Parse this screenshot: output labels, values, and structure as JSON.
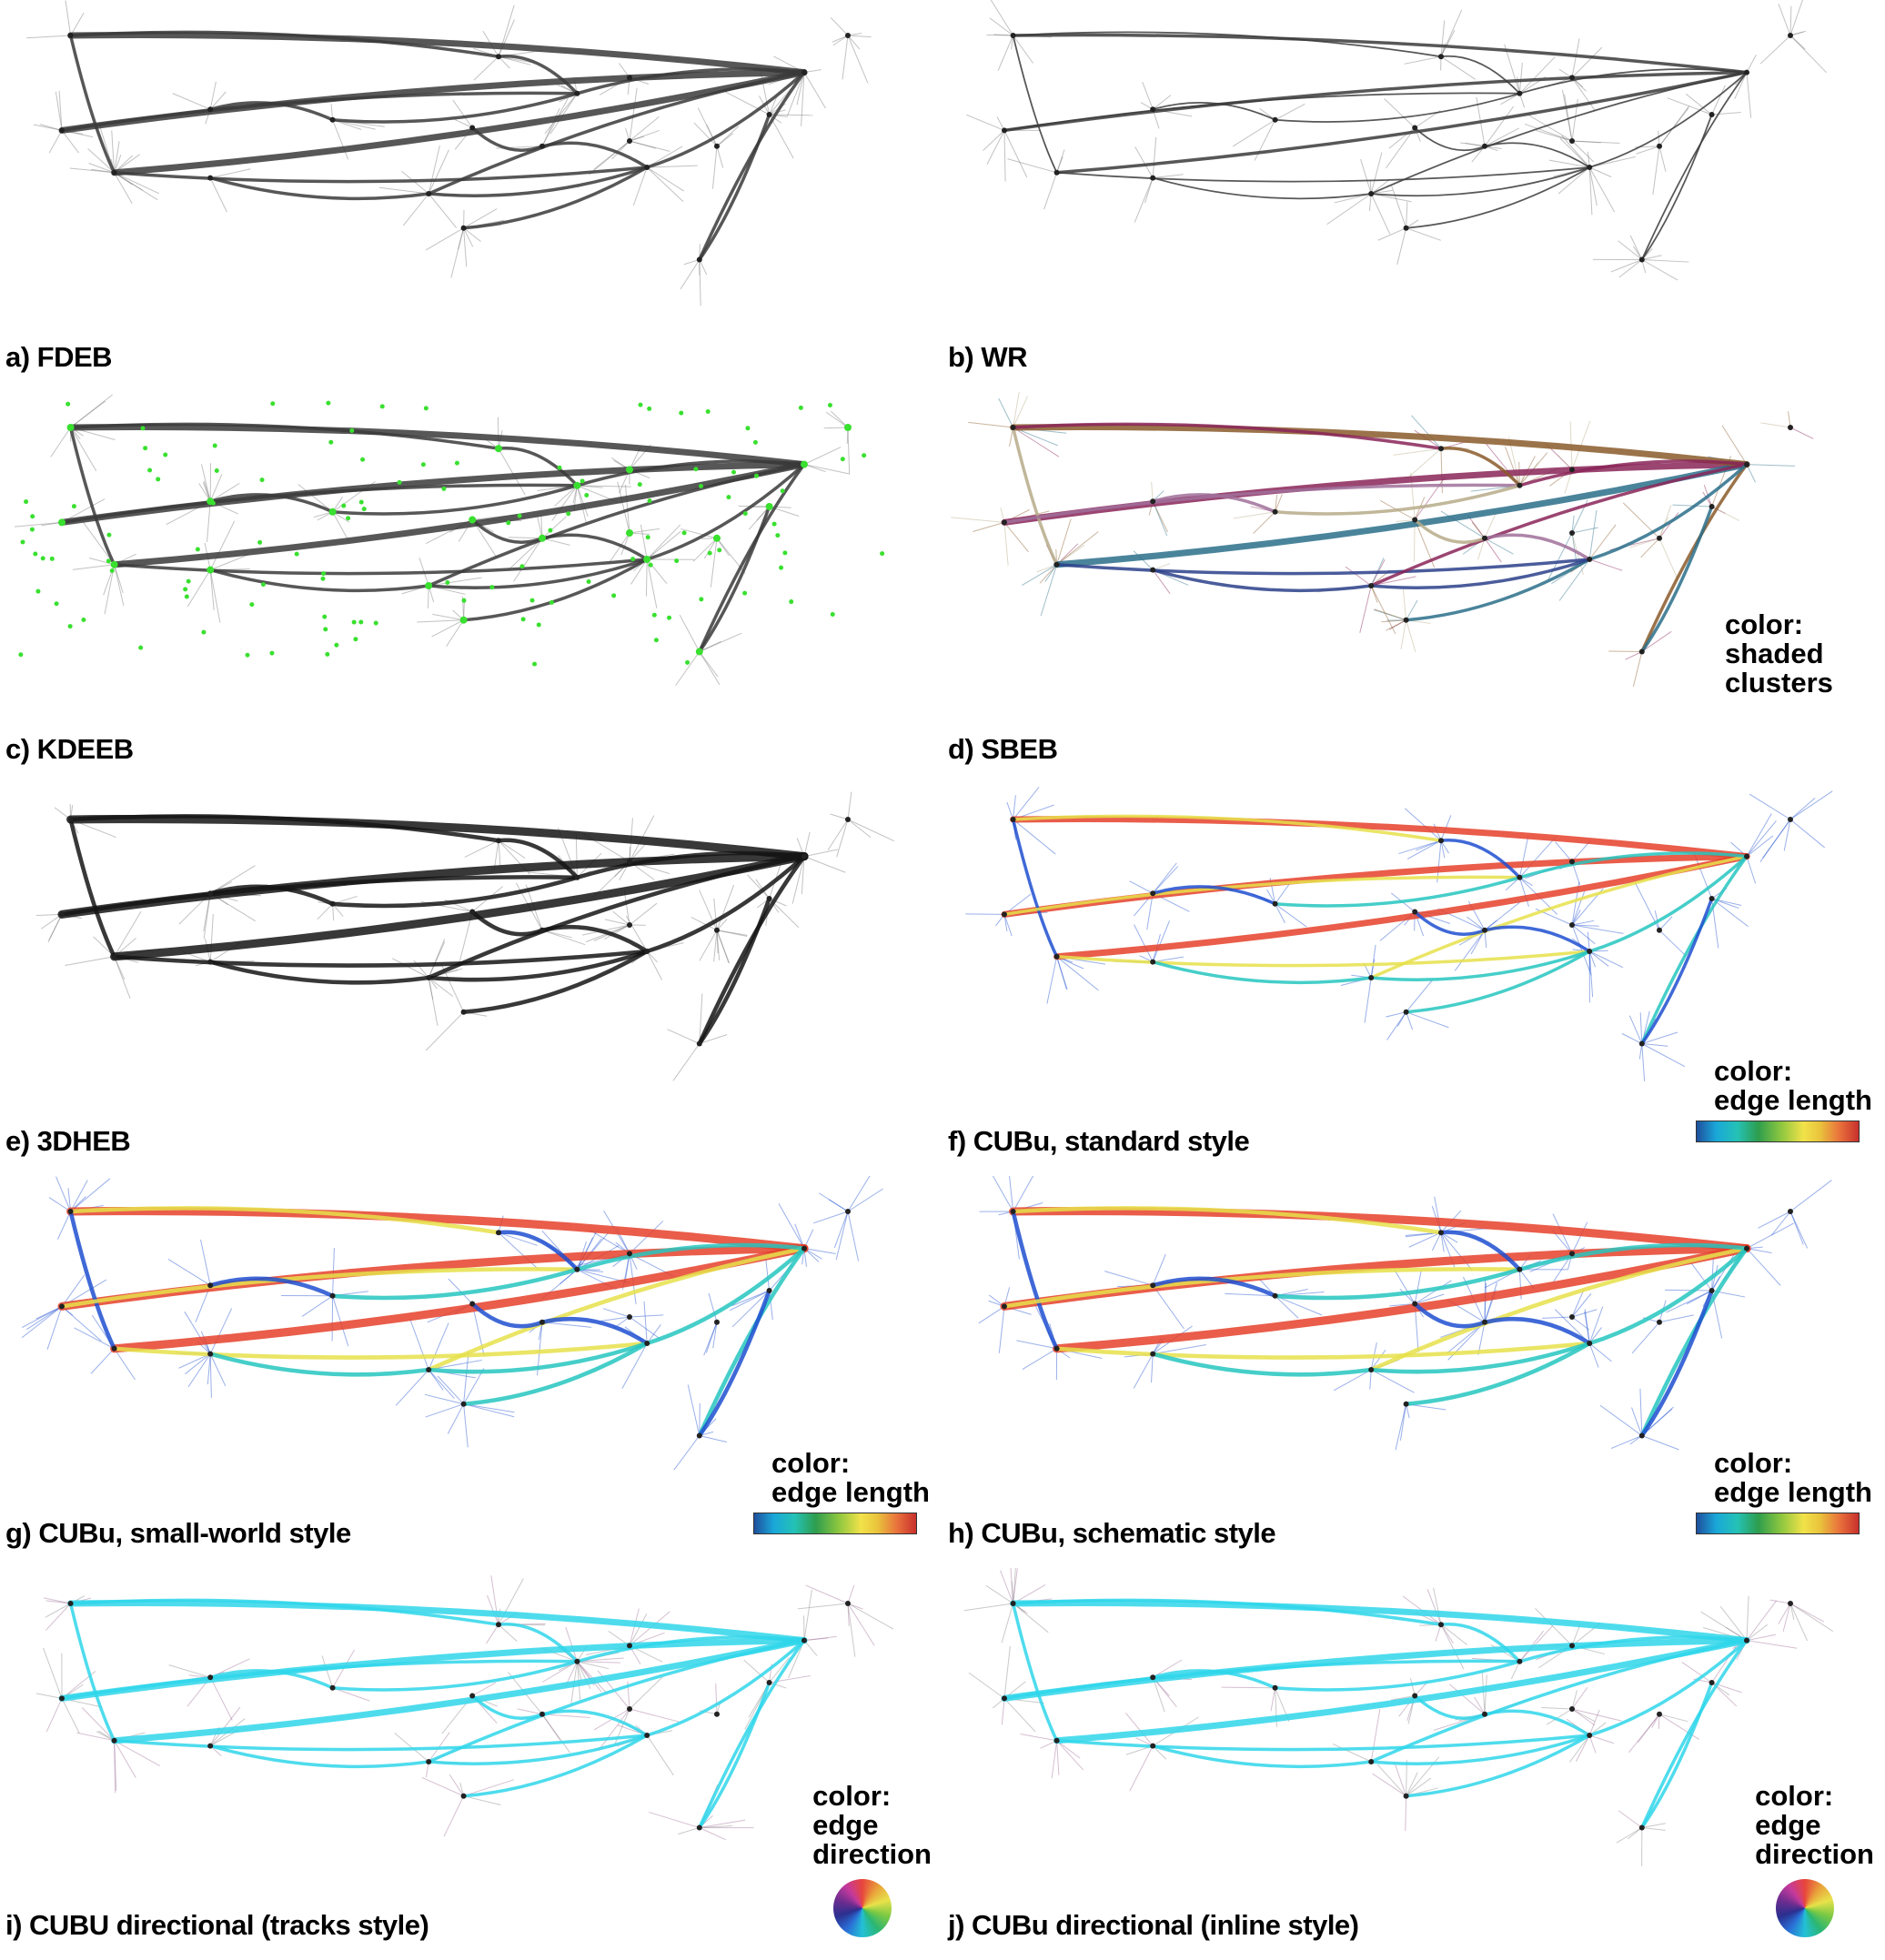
{
  "panels": [
    {
      "label": "a) FDEB",
      "style": "gray",
      "thick": "trunk"
    },
    {
      "label": "b) WR",
      "style": "gray",
      "thick": "thin"
    },
    {
      "label": "c) KDEEB",
      "style": "gray-green",
      "thick": "medium"
    },
    {
      "label": "d) SBEB",
      "style": "clusters",
      "thick": "tree",
      "legend": [
        "color:",
        "shaded",
        "clusters"
      ]
    },
    {
      "label": "e) 3DHEB",
      "style": "black",
      "thick": "bold"
    },
    {
      "label": "f) CUBu, standard style",
      "style": "length",
      "thick": "medium",
      "legend": [
        "color:",
        "edge length"
      ],
      "colorbar": true
    },
    {
      "label": "g) CUBu, small-world style",
      "style": "length",
      "thick": "bold",
      "legend": [
        "color:",
        "edge length"
      ],
      "colorbar": true
    },
    {
      "label": "h) CUBu, schematic style",
      "style": "schematic",
      "thick": "bold",
      "legend": [
        "color:",
        "edge length"
      ],
      "colorbar": true
    },
    {
      "label": "i) CUBU directional (tracks style)",
      "style": "direction",
      "thick": "medium",
      "legend": [
        "color:",
        "edge",
        "direction"
      ],
      "wheel": true
    },
    {
      "label": "j) CUBu directional (inline style)",
      "style": "direction",
      "thick": "medium",
      "legend": [
        "color:",
        "edge",
        "direction"
      ],
      "wheel": true
    }
  ],
  "palette": {
    "gray": "#3a3a3a",
    "green": "#39e02f",
    "length_low": "#1f4fd0",
    "length_mid": "#26c6c0",
    "length_high": "#e5412a",
    "length_yellow": "#e6e04a",
    "direction_cyan": "#2fd6ea",
    "direction_red": "#e8342c",
    "cluster_colors": [
      "#8a2458",
      "#2a6f8a",
      "#8a5a2a",
      "#b6aa88",
      "#a0709a",
      "#2a3f8a"
    ]
  }
}
